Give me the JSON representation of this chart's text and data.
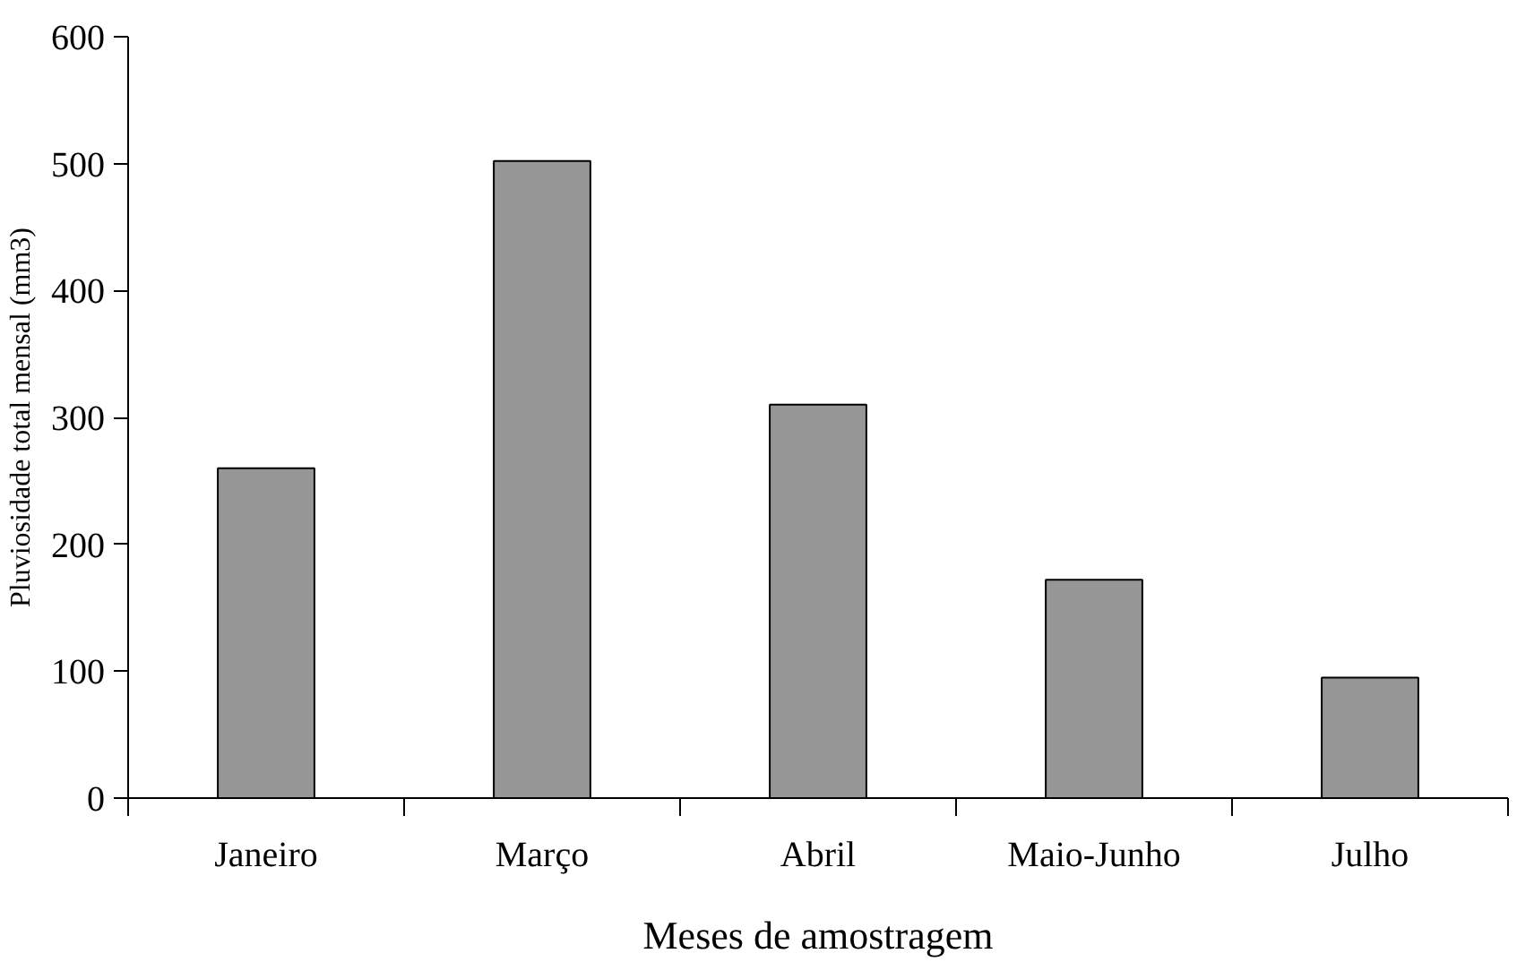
{
  "chart_data": {
    "type": "bar",
    "xlabel": "Meses de amostragem",
    "ylabel": "Pluviosidade total mensal (mm3)",
    "categories": [
      "Janeiro",
      "Março",
      "Abril",
      "Maio-Junho",
      "Julho"
    ],
    "values": [
      260,
      502,
      310,
      172,
      95
    ],
    "color": "#969696",
    "ylim": [
      0,
      600
    ],
    "yticks": [
      0,
      100,
      200,
      300,
      400,
      500,
      600
    ],
    "grid": false
  }
}
